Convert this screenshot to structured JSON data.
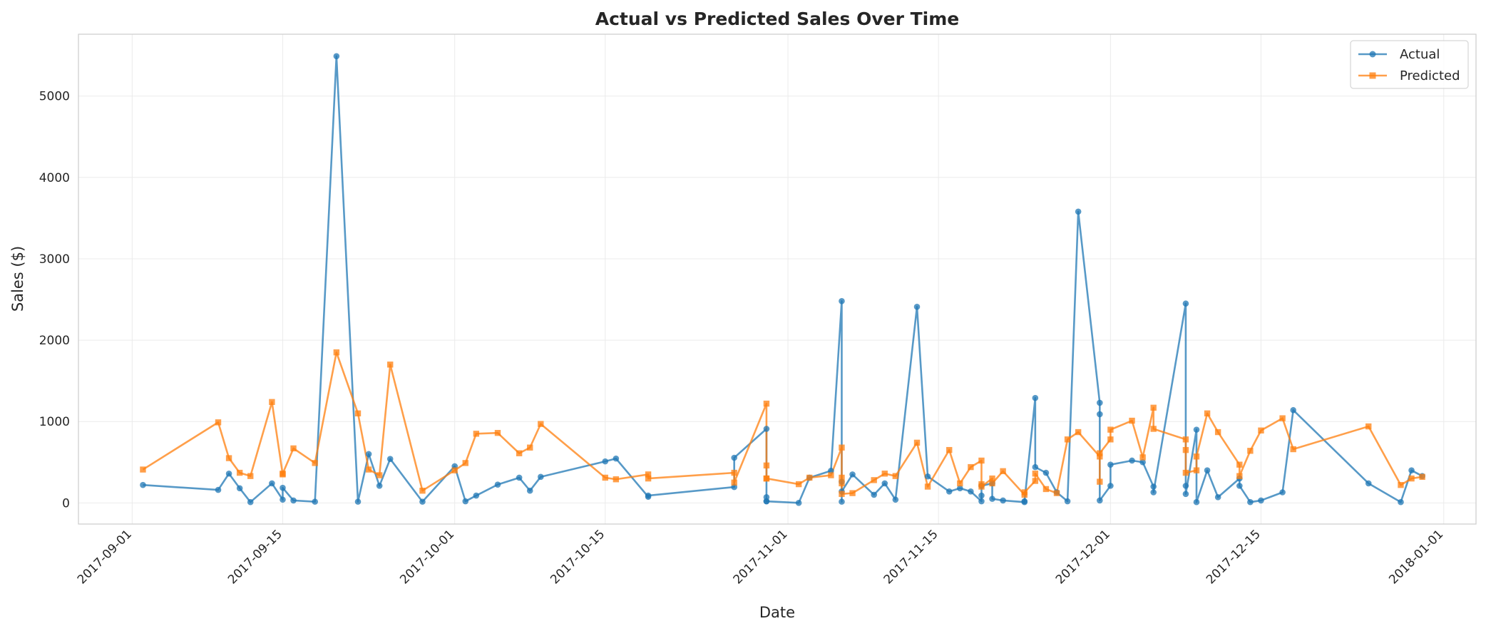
{
  "chart_data": {
    "type": "line",
    "title": "Actual vs Predicted Sales Over Time",
    "xlabel": "Date",
    "ylabel": "Sales ($)",
    "ylim": [
      -260,
      5760
    ],
    "y_ticks": [
      "0",
      "1000",
      "2000",
      "3000",
      "4000",
      "5000"
    ],
    "y_tick_values": [
      0,
      1000,
      2000,
      3000,
      4000,
      5000
    ],
    "x_ticks": [
      "2017-09-01",
      "2017-09-15",
      "2017-10-01",
      "2017-10-15",
      "2017-11-01",
      "2017-11-15",
      "2017-12-01",
      "2017-12-15",
      "2018-01-01"
    ],
    "xlim": [
      "2017-08-27",
      "2018-01-04"
    ],
    "grid": true,
    "legend_position": "top-right",
    "colors": {
      "actual": "#1f77b4",
      "predicted": "#ff7f0e"
    },
    "x": [
      "2017-09-02",
      "2017-09-09",
      "2017-09-10",
      "2017-09-11",
      "2017-09-12",
      "2017-09-14",
      "2017-09-15",
      "2017-09-15",
      "2017-09-16",
      "2017-09-18",
      "2017-09-20",
      "2017-09-22",
      "2017-09-23",
      "2017-09-24",
      "2017-09-25",
      "2017-09-28",
      "2017-10-01",
      "2017-10-02",
      "2017-10-03",
      "2017-10-05",
      "2017-10-07",
      "2017-10-08",
      "2017-10-09",
      "2017-10-15",
      "2017-10-16",
      "2017-10-19",
      "2017-10-19",
      "2017-10-27",
      "2017-10-27",
      "2017-10-30",
      "2017-10-30",
      "2017-10-30",
      "2017-10-30",
      "2017-11-02",
      "2017-11-03",
      "2017-11-05",
      "2017-11-06",
      "2017-11-06",
      "2017-11-06",
      "2017-11-06",
      "2017-11-07",
      "2017-11-09",
      "2017-11-10",
      "2017-11-11",
      "2017-11-13",
      "2017-11-14",
      "2017-11-16",
      "2017-11-17",
      "2017-11-18",
      "2017-11-19",
      "2017-11-19",
      "2017-11-19",
      "2017-11-20",
      "2017-11-20",
      "2017-11-21",
      "2017-11-23",
      "2017-11-23",
      "2017-11-24",
      "2017-11-24",
      "2017-11-25",
      "2017-11-26",
      "2017-11-27",
      "2017-11-28",
      "2017-11-30",
      "2017-11-30",
      "2017-11-30",
      "2017-12-01",
      "2017-12-01",
      "2017-12-03",
      "2017-12-04",
      "2017-12-05",
      "2017-12-05",
      "2017-12-08",
      "2017-12-08",
      "2017-12-08",
      "2017-12-09",
      "2017-12-09",
      "2017-12-10",
      "2017-12-11",
      "2017-12-13",
      "2017-12-13",
      "2017-12-14",
      "2017-12-15",
      "2017-12-17",
      "2017-12-18",
      "2017-12-25",
      "2017-12-28",
      "2017-12-29",
      "2017-12-30"
    ],
    "series": [
      {
        "name": "Actual",
        "values": [
          220,
          160,
          360,
          180,
          10,
          240,
          40,
          185,
          30,
          15,
          5490,
          15,
          600,
          210,
          540,
          15,
          450,
          20,
          90,
          225,
          310,
          150,
          320,
          510,
          545,
          75,
          90,
          195,
          555,
          910,
          70,
          20,
          20,
          0,
          310,
          395,
          2480,
          15,
          260,
          140,
          350,
          100,
          240,
          40,
          2410,
          325,
          140,
          180,
          140,
          20,
          90,
          210,
          240,
          50,
          30,
          10,
          20,
          1290,
          440,
          370,
          130,
          20,
          3580,
          1230,
          1090,
          30,
          210,
          470,
          520,
          500,
          200,
          130,
          2450,
          210,
          110,
          900,
          10,
          400,
          70,
          300,
          210,
          10,
          30,
          130,
          1140,
          240,
          10,
          400,
          330
        ]
      },
      {
        "name": "Predicted",
        "values": [
          410,
          990,
          550,
          370,
          330,
          1240,
          350,
          360,
          670,
          490,
          1850,
          1100,
          410,
          340,
          1700,
          150,
          400,
          490,
          850,
          860,
          610,
          680,
          970,
          310,
          290,
          350,
          300,
          370,
          250,
          1220,
          460,
          300,
          300,
          230,
          310,
          340,
          680,
          310,
          240,
          110,
          120,
          280,
          360,
          330,
          740,
          200,
          650,
          240,
          440,
          520,
          230,
          200,
          300,
          240,
          390,
          100,
          130,
          270,
          360,
          170,
          120,
          780,
          870,
          570,
          260,
          610,
          780,
          900,
          1010,
          560,
          1170,
          910,
          780,
          650,
          370,
          400,
          570,
          1100,
          870,
          470,
          330,
          640,
          890,
          1040,
          660,
          940,
          220,
          300,
          320
        ]
      }
    ]
  }
}
